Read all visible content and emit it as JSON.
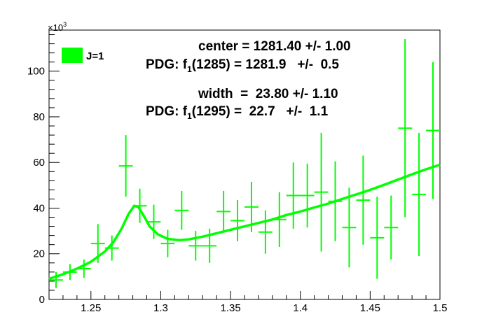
{
  "chart_data": {
    "type": "scatter",
    "xlim": [
      1.22,
      1.5
    ],
    "ylim": [
      0,
      118
    ],
    "x_ticks": [
      "1.25",
      "1.3",
      "1.35",
      "1.4",
      "1.45",
      "1.5"
    ],
    "y_ticks": [
      "0",
      "20",
      "40",
      "60",
      "80",
      "100"
    ],
    "y_multiplier": "×10",
    "y_multiplier_exp": "3",
    "legend": {
      "label": "J=1",
      "placement": "top-left",
      "color": "#00ff00"
    },
    "series_color": "#00ff00",
    "annotations": {
      "center": "center = 1281.40 +/- 1.00",
      "pdg1_pre": "PDG: f",
      "pdg1_sub": "1",
      "pdg1_post": "(1285) = 1281.9   +/-  0.5",
      "width": "width  =  23.80 +/- 1.10",
      "pdg2_pre": "PDG: f",
      "pdg2_sub": "1",
      "pdg2_post": "(1295) =  22.7   +/-  1.1"
    },
    "points": [
      {
        "x": 1.225,
        "y": 8.5,
        "err": 3.5
      },
      {
        "x": 1.235,
        "y": 12.0,
        "err": 3.5
      },
      {
        "x": 1.245,
        "y": 13.5,
        "err": 4.0
      },
      {
        "x": 1.255,
        "y": 24.5,
        "err": 8.5
      },
      {
        "x": 1.265,
        "y": 22.5,
        "err": 5.5
      },
      {
        "x": 1.275,
        "y": 58.5,
        "err": 13.5
      },
      {
        "x": 1.285,
        "y": 41.0,
        "err": 7.5
      },
      {
        "x": 1.295,
        "y": 34.0,
        "err": 7.5
      },
      {
        "x": 1.305,
        "y": 24.5,
        "err": 6.0
      },
      {
        "x": 1.315,
        "y": 39.0,
        "err": 8.5
      },
      {
        "x": 1.325,
        "y": 23.5,
        "err": 6.5
      },
      {
        "x": 1.335,
        "y": 23.5,
        "err": 7.5
      },
      {
        "x": 1.345,
        "y": 38.5,
        "err": 9.0
      },
      {
        "x": 1.355,
        "y": 34.5,
        "err": 9.0
      },
      {
        "x": 1.365,
        "y": 40.5,
        "err": 11.0
      },
      {
        "x": 1.375,
        "y": 29.5,
        "err": 9.5
      },
      {
        "x": 1.385,
        "y": 35.0,
        "err": 12.0
      },
      {
        "x": 1.395,
        "y": 45.5,
        "err": 14.5
      },
      {
        "x": 1.405,
        "y": 45.5,
        "err": 14.0
      },
      {
        "x": 1.415,
        "y": 47.0,
        "err": 26.0
      },
      {
        "x": 1.425,
        "y": 43.0,
        "err": 17.5
      },
      {
        "x": 1.435,
        "y": 31.5,
        "err": 17.5
      },
      {
        "x": 1.445,
        "y": 43.5,
        "err": 19.5
      },
      {
        "x": 1.455,
        "y": 27.0,
        "err": 18.0
      },
      {
        "x": 1.465,
        "y": 31.5,
        "err": 14.0
      },
      {
        "x": 1.475,
        "y": 75.0,
        "err": 39.0
      },
      {
        "x": 1.485,
        "y": 46.0,
        "err": 27.0
      },
      {
        "x": 1.495,
        "y": 74.0,
        "err": 30.0
      }
    ],
    "fit_curve": [
      [
        1.22,
        9.0
      ],
      [
        1.23,
        11.0
      ],
      [
        1.24,
        13.5
      ],
      [
        1.25,
        16.5
      ],
      [
        1.26,
        21.0
      ],
      [
        1.266,
        25.0
      ],
      [
        1.272,
        31.0
      ],
      [
        1.277,
        37.5
      ],
      [
        1.281,
        41.0
      ],
      [
        1.284,
        40.5
      ],
      [
        1.288,
        36.5
      ],
      [
        1.292,
        32.0
      ],
      [
        1.298,
        28.5
      ],
      [
        1.305,
        26.5
      ],
      [
        1.313,
        26.0
      ],
      [
        1.32,
        26.3
      ],
      [
        1.33,
        27.5
      ],
      [
        1.34,
        29.0
      ],
      [
        1.35,
        30.5
      ],
      [
        1.36,
        32.0
      ],
      [
        1.37,
        33.5
      ],
      [
        1.38,
        35.0
      ],
      [
        1.39,
        37.0
      ],
      [
        1.4,
        38.5
      ],
      [
        1.41,
        40.3
      ],
      [
        1.42,
        42.0
      ],
      [
        1.43,
        44.0
      ],
      [
        1.44,
        46.0
      ],
      [
        1.45,
        48.0
      ],
      [
        1.46,
        50.2
      ],
      [
        1.47,
        52.5
      ],
      [
        1.48,
        54.8
      ],
      [
        1.49,
        57.0
      ],
      [
        1.5,
        59.0
      ]
    ]
  }
}
